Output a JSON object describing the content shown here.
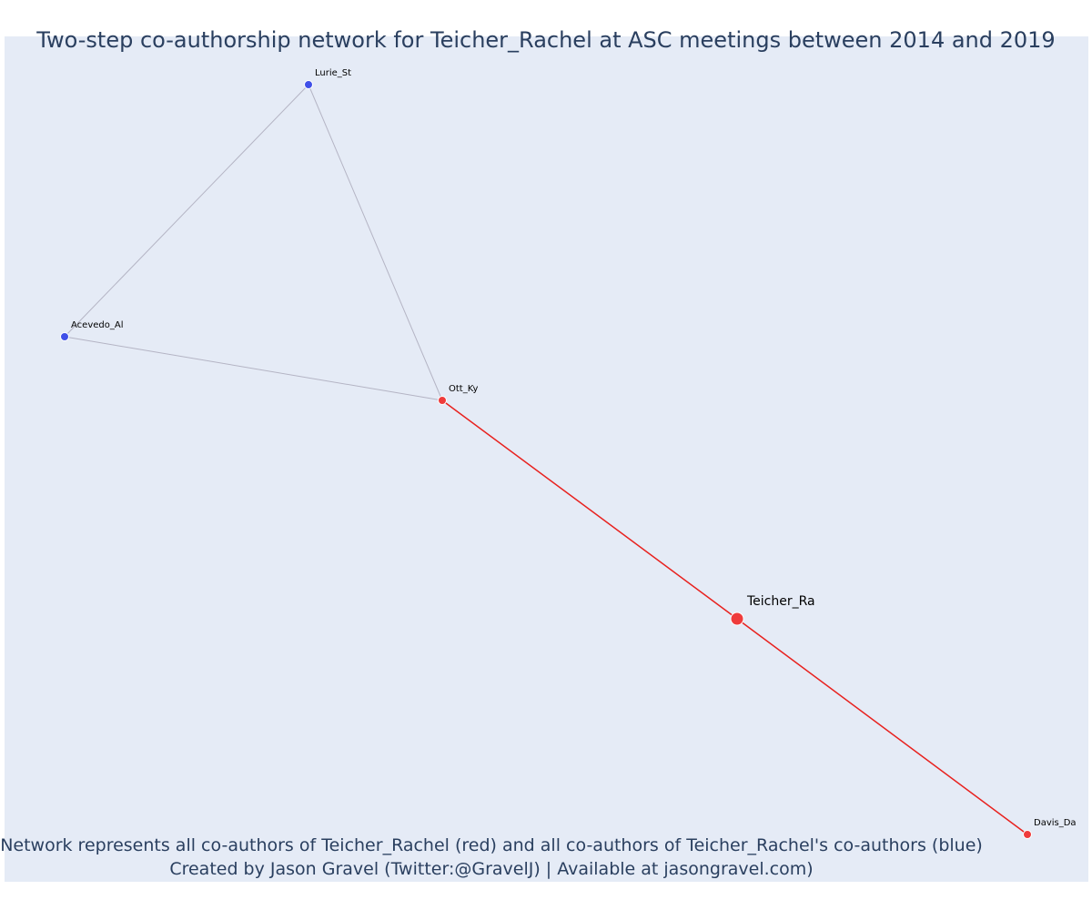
{
  "title": "Two-step co-authorship network for Teicher_Rachel at ASC meetings between 2014 and 2019",
  "caption": {
    "line1": "Network represents all co-authors of Teicher_Rachel (red) and all co-authors of Teicher_Rachel's co-authors (blue)",
    "line2": "Created by Jason Gravel (Twitter:@GravelJ) | Available at jasongravel.com)"
  },
  "colors": {
    "background": "#e5ebf6",
    "first_degree": "#ef3b3b",
    "second_degree": "#4050e8",
    "ego_edge": "#e8211e",
    "other_edge": "#b4b4c4",
    "text": "#2a3f5f"
  },
  "network": {
    "nodes": [
      {
        "id": "Lurie_St",
        "label": "Lurie_St",
        "group": "second_degree"
      },
      {
        "id": "Acevedo_Al",
        "label": "Acevedo_Al",
        "group": "second_degree"
      },
      {
        "id": "Ott_Ky",
        "label": "Ott_Ky",
        "group": "first_degree"
      },
      {
        "id": "Teicher_Ra",
        "label": "Teicher_Ra",
        "group": "ego"
      },
      {
        "id": "Davis_Da",
        "label": "Davis_Da",
        "group": "first_degree"
      }
    ],
    "edges": [
      {
        "source": "Lurie_St",
        "target": "Acevedo_Al",
        "type": "other"
      },
      {
        "source": "Lurie_St",
        "target": "Ott_Ky",
        "type": "other"
      },
      {
        "source": "Acevedo_Al",
        "target": "Ott_Ky",
        "type": "other"
      },
      {
        "source": "Ott_Ky",
        "target": "Teicher_Ra",
        "type": "ego"
      },
      {
        "source": "Teicher_Ra",
        "target": "Davis_Da",
        "type": "ego"
      }
    ]
  }
}
